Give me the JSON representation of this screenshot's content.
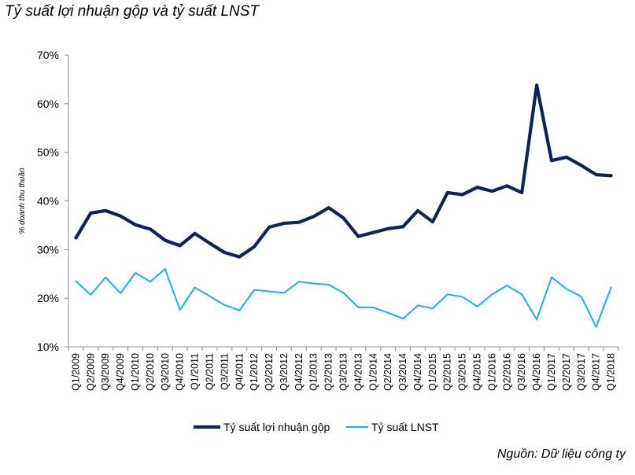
{
  "chart_data": {
    "type": "line",
    "title": "Tỷ suất lợi nhuận gộp và tỷ suất LNST",
    "ylabel": "% doanh thu thuần",
    "xlabel": "",
    "ylim": [
      10,
      70
    ],
    "yticks": [
      "10%",
      "20%",
      "30%",
      "40%",
      "50%",
      "60%",
      "70%"
    ],
    "grid": false,
    "legend_position": "bottom",
    "categories": [
      "Q1/2009",
      "Q2/2009",
      "Q3/2009",
      "Q4/2009",
      "Q1/2010",
      "Q2/2010",
      "Q3/2010",
      "Q4/2010",
      "Q1/2011",
      "Q2/2011",
      "Q3/2011",
      "Q4/2011",
      "Q1/2012",
      "Q2/2012",
      "Q3/2012",
      "Q4/2012",
      "Q1/2013",
      "Q2/2013",
      "Q3/2013",
      "Q4/2013",
      "Q1/2014",
      "Q2/2014",
      "Q3/2014",
      "Q4/2014",
      "Q1/2015",
      "Q2/2015",
      "Q3/2015",
      "Q4/2015",
      "Q1/2016",
      "Q2/2016",
      "Q3/2016",
      "Q4/2016",
      "Q1/2017",
      "Q2/2017",
      "Q3/2017",
      "Q4/2017",
      "Q1/2018"
    ],
    "series": [
      {
        "name": "Tỷ suất lợi nhuận gộp",
        "color": "#0f2453",
        "values": [
          32.4,
          37.5,
          38.0,
          36.9,
          35.1,
          34.2,
          31.9,
          30.8,
          33.3,
          31.3,
          29.4,
          28.5,
          30.6,
          34.6,
          35.4,
          35.6,
          36.8,
          38.6,
          36.5,
          32.7,
          33.5,
          34.3,
          34.7,
          38.0,
          35.7,
          41.7,
          41.3,
          42.8,
          42.0,
          43.1,
          41.7,
          63.8,
          48.3,
          49.0,
          47.3,
          45.4,
          45.2
        ]
      },
      {
        "name": "Tỷ suất LNST",
        "color": "#1cb0e6",
        "values": [
          23.5,
          20.7,
          24.3,
          21.0,
          25.2,
          23.4,
          26.0,
          17.6,
          22.2,
          20.4,
          18.6,
          17.5,
          21.7,
          21.4,
          21.1,
          23.4,
          23.0,
          22.8,
          21.1,
          18.1,
          18.1,
          17.0,
          15.8,
          18.5,
          17.9,
          20.8,
          20.3,
          18.3,
          20.8,
          22.6,
          20.8,
          15.6,
          24.3,
          21.9,
          20.3,
          14.1,
          22.2
        ]
      }
    ]
  },
  "source": "Nguồn: Dữ liệu công ty"
}
